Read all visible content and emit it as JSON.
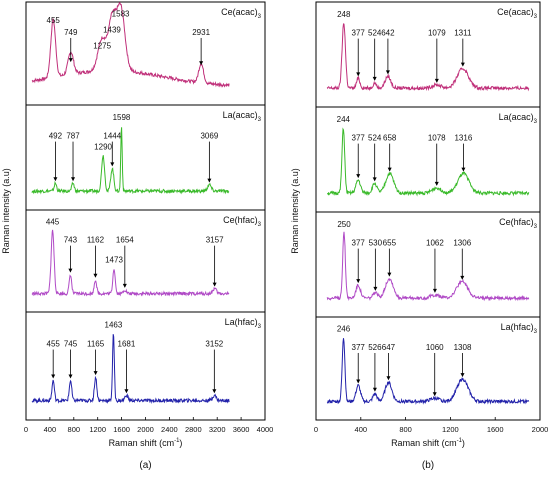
{
  "chart_data": [
    {
      "type": "line",
      "panel_label": "(a)",
      "xlabel": "Raman shift (cm",
      "xlabel_sup": "-1",
      "xlabel_close": ")",
      "ylabel": "Raman intensity (a.u)",
      "xlim": [
        0,
        4000
      ],
      "xticks": [
        "0",
        "400",
        "800",
        "1200",
        "1600",
        "2000",
        "2400",
        "2800",
        "3200",
        "3600",
        "4000"
      ],
      "grid": false,
      "series": [
        {
          "name": "Ce(acac)",
          "name_sub": "3",
          "color": "#c0307a",
          "x_range": [
            100,
            3400
          ],
          "peaks": [
            {
              "x": 455,
              "label": "455",
              "h": 0.9,
              "w": 40
            },
            {
              "x": 749,
              "label": "749",
              "h": 0.35,
              "w": 45
            },
            {
              "x": 1275,
              "label": "1275",
              "h": 0.5,
              "w": 70
            },
            {
              "x": 1439,
              "label": "1439",
              "h": 0.75,
              "w": 60
            },
            {
              "x": 1583,
              "label": "1583",
              "h": 1.0,
              "w": 70
            },
            {
              "x": 2931,
              "label": "2931",
              "h": 0.3,
              "w": 40
            }
          ]
        },
        {
          "name": "La(acac)",
          "name_sub": "3",
          "color": "#3aba2a",
          "x_range": [
            100,
            3400
          ],
          "peaks": [
            {
              "x": 492,
              "label": "492",
              "h": 0.12,
              "w": 20
            },
            {
              "x": 787,
              "label": "787",
              "h": 0.12,
              "w": 20
            },
            {
              "x": 1290,
              "label": "1290",
              "h": 0.55,
              "w": 25
            },
            {
              "x": 1444,
              "label": "1444",
              "h": 0.35,
              "w": 25
            },
            {
              "x": 1598,
              "label": "1598",
              "h": 1.0,
              "w": 12
            },
            {
              "x": 3069,
              "label": "3069",
              "h": 0.1,
              "w": 30
            }
          ]
        },
        {
          "name": "Ce(hfac)",
          "name_sub": "3",
          "color": "#b04ac6",
          "x_range": [
            100,
            3400
          ],
          "peaks": [
            {
              "x": 445,
              "label": "445",
              "h": 1.0,
              "w": 25
            },
            {
              "x": 743,
              "label": "743",
              "h": 0.3,
              "w": 20
            },
            {
              "x": 1162,
              "label": "1162",
              "h": 0.22,
              "w": 20
            },
            {
              "x": 1473,
              "label": "1473",
              "h": 0.4,
              "w": 20
            },
            {
              "x": 1654,
              "label": "1654",
              "h": 0.06,
              "w": 25
            },
            {
              "x": 3157,
              "label": "3157",
              "h": 0.08,
              "w": 30
            }
          ]
        },
        {
          "name": "La(hfac)",
          "name_sub": "3",
          "color": "#2222aa",
          "x_range": [
            100,
            3400
          ],
          "peaks": [
            {
              "x": 455,
              "label": "455",
              "h": 0.3,
              "w": 20
            },
            {
              "x": 745,
              "label": "745",
              "h": 0.3,
              "w": 20
            },
            {
              "x": 1165,
              "label": "1165",
              "h": 0.35,
              "w": 20
            },
            {
              "x": 1463,
              "label": "1463",
              "h": 1.0,
              "w": 15
            },
            {
              "x": 1681,
              "label": "1681",
              "h": 0.08,
              "w": 25
            },
            {
              "x": 3152,
              "label": "3152",
              "h": 0.08,
              "w": 30
            }
          ]
        }
      ]
    },
    {
      "type": "line",
      "panel_label": "(b)",
      "xlabel": "Raman shift (cm",
      "xlabel_sup": "-1",
      "xlabel_close": ")",
      "ylabel": "Raman intensity (a.u)",
      "xlim": [
        0,
        2000
      ],
      "xticks": [
        "0",
        "400",
        "800",
        "1200",
        "1600",
        "2000"
      ],
      "grid": false,
      "series": [
        {
          "name": "Ce(acac)",
          "name_sub": "3",
          "color": "#c0307a",
          "x_range": [
            100,
            1900
          ],
          "peaks": [
            {
              "x": 248,
              "label": "248",
              "h": 1.0,
              "w": 15
            },
            {
              "x": 377,
              "label": "377",
              "h": 0.15,
              "w": 15
            },
            {
              "x": 524,
              "label": "524",
              "h": 0.08,
              "w": 15
            },
            {
              "x": 642,
              "label": "642",
              "h": 0.18,
              "w": 25
            },
            {
              "x": 1079,
              "label": "1079",
              "h": 0.05,
              "w": 40
            },
            {
              "x": 1311,
              "label": "1311",
              "h": 0.3,
              "w": 50
            }
          ]
        },
        {
          "name": "La(acac)",
          "name_sub": "3",
          "color": "#3aba2a",
          "x_range": [
            100,
            1900
          ],
          "peaks": [
            {
              "x": 244,
              "label": "244",
              "h": 1.0,
              "w": 12
            },
            {
              "x": 377,
              "label": "377",
              "h": 0.2,
              "w": 20
            },
            {
              "x": 524,
              "label": "524",
              "h": 0.15,
              "w": 20
            },
            {
              "x": 658,
              "label": "658",
              "h": 0.3,
              "w": 35
            },
            {
              "x": 1078,
              "label": "1078",
              "h": 0.08,
              "w": 40
            },
            {
              "x": 1316,
              "label": "1316",
              "h": 0.3,
              "w": 50
            }
          ]
        },
        {
          "name": "Ce(hfac)",
          "name_sub": "3",
          "color": "#b04ac6",
          "x_range": [
            100,
            1900
          ],
          "peaks": [
            {
              "x": 250,
              "label": "250",
              "h": 1.0,
              "w": 12
            },
            {
              "x": 377,
              "label": "377",
              "h": 0.2,
              "w": 20
            },
            {
              "x": 530,
              "label": "530",
              "h": 0.08,
              "w": 20
            },
            {
              "x": 655,
              "label": "655",
              "h": 0.3,
              "w": 35
            },
            {
              "x": 1062,
              "label": "1062",
              "h": 0.05,
              "w": 40
            },
            {
              "x": 1306,
              "label": "1306",
              "h": 0.25,
              "w": 50
            }
          ]
        },
        {
          "name": "La(hfac)",
          "name_sub": "3",
          "color": "#2222aa",
          "x_range": [
            100,
            1900
          ],
          "peaks": [
            {
              "x": 246,
              "label": "246",
              "h": 1.0,
              "w": 12
            },
            {
              "x": 377,
              "label": "377",
              "h": 0.25,
              "w": 20
            },
            {
              "x": 526,
              "label": "526",
              "h": 0.12,
              "w": 18
            },
            {
              "x": 647,
              "label": "647",
              "h": 0.3,
              "w": 30
            },
            {
              "x": 1060,
              "label": "1060",
              "h": 0.05,
              "w": 40
            },
            {
              "x": 1308,
              "label": "1308",
              "h": 0.35,
              "w": 50
            }
          ]
        }
      ]
    }
  ]
}
